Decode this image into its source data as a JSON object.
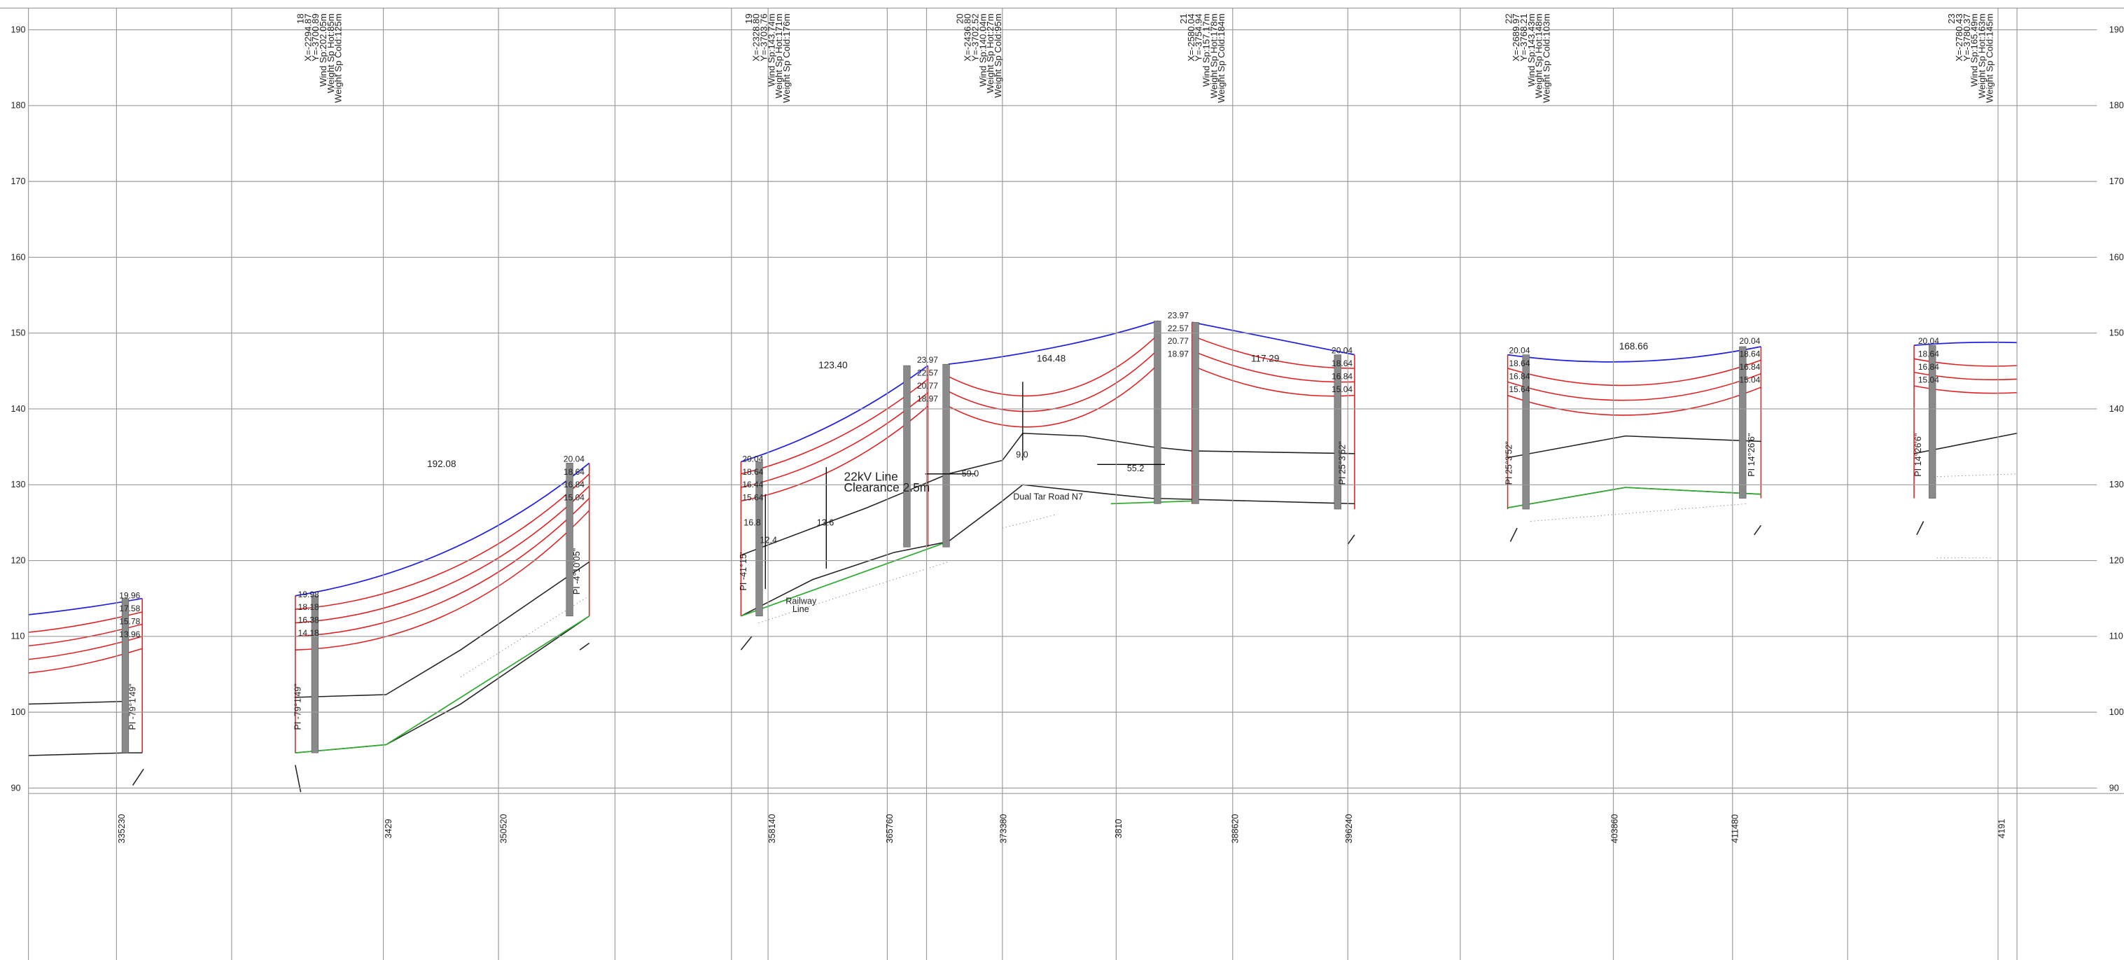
{
  "elevations": [
    190,
    180,
    170,
    160,
    150,
    140,
    130,
    120,
    110,
    100,
    90
  ],
  "chainages": [
    "335230",
    "3429",
    "350520",
    "358140",
    "365760",
    "373380",
    "3810",
    "388620",
    "396240",
    "403860",
    "411480",
    "4191"
  ],
  "towers": [
    {
      "number": "18",
      "x": "X=-2294.87",
      "y": "Y=-3700.89",
      "wind_span": "Wind Sp:202.05m",
      "weight_span_hot": "Weight Sp Hot:85m",
      "weight_span_cold": "Weight Sp Cold:125m"
    },
    {
      "number": "19",
      "x": "X=-2328.80",
      "y": "Y=-3703.76",
      "wind_span": "Wind Sp:143.74m",
      "weight_span_hot": "Weight Sp Hot:171m",
      "weight_span_cold": "Weight Sp Cold:176m"
    },
    {
      "number": "20",
      "x": "X=-2436.80",
      "y": "Y=-3702.52",
      "wind_span": "Wind Sp:140.04m",
      "weight_span_hot": "Weight Sp Hot:27m",
      "weight_span_cold": "Weight Sp Cold:95m"
    },
    {
      "number": "21",
      "x": "X=-2580.04",
      "y": "Y=-3754.94",
      "wind_span": "Wind Sp:157.17m",
      "weight_span_hot": "Weight Sp Hot:178m",
      "weight_span_cold": "Weight Sp Cold:184m"
    },
    {
      "number": "22",
      "x": "X=-2689.97",
      "y": "Y=-3768.21",
      "wind_span": "Wind Sp:143.43m",
      "weight_span_hot": "Weight Sp Hot:148m",
      "weight_span_cold": "Weight Sp Cold:103m"
    },
    {
      "number": "23",
      "x": "X=-2780.43",
      "y": "Y=-3780.37",
      "wind_span": "Wind Sp:165.49m",
      "weight_span_hot": "Weight Sp Hot:163m",
      "weight_span_cold": "Weight Sp Cold:145m"
    }
  ],
  "spans": [
    "192.08",
    "123.40",
    "164.48",
    "117.29",
    "168.66"
  ],
  "clearances": [
    [
      "19.96",
      "17.58",
      "15.78",
      "13.96"
    ],
    [
      "19.98",
      "18.18",
      "16.38",
      "14.18"
    ],
    [
      "20.04",
      "18.64",
      "16.84",
      "15.04"
    ],
    [
      "20.04",
      "18.64",
      "16.44",
      "15.64"
    ],
    [
      "23.97",
      "22.57",
      "20.77",
      "18.97"
    ],
    [
      "23.97",
      "22.57",
      "20.77",
      "18.97"
    ],
    [
      "20.04",
      "18.64",
      "16.84",
      "15.04"
    ],
    [
      "20.04",
      "18.64",
      "16.84",
      "15.64"
    ],
    [
      "20.04",
      "18.64",
      "16.84",
      "15.04"
    ],
    [
      "20.04",
      "18.64",
      "16.84",
      "15.04"
    ]
  ],
  "angles": [
    "PI -79°1'49\"",
    "PI -79°1'49\"",
    "PI -4°10'05\"",
    "PI -41°15'",
    "PI 25°3'52\"",
    "PI 25°3'52\"",
    "PI 14°26'6\"",
    "PI 14°26'6\""
  ],
  "annotations": {
    "line": "22kV Line",
    "clearance": "Clearance 2.5m",
    "d59": "59.0",
    "d9": "9.0",
    "d55": "55.2",
    "d13": "13.6",
    "d16": "16.8",
    "d12": "12.4",
    "road": "Dual Tar Road N7",
    "railway": [
      "Railway",
      "Line"
    ]
  }
}
